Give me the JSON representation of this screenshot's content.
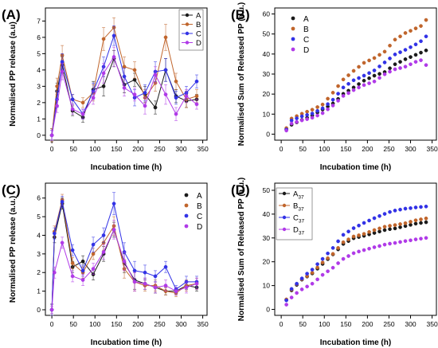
{
  "figure": {
    "colors": {
      "A": "#1a1a1a",
      "B": "#c0652c",
      "C": "#3232e6",
      "D": "#b03ae8"
    }
  },
  "chart_data": [
    {
      "panel_label": "(A)",
      "type": "line",
      "xlabel": "Incubation time (h)",
      "ylabel": "Normalised PP release (a.u)",
      "xlim": [
        -15,
        360
      ],
      "ylim": [
        -0.3,
        7.8
      ],
      "xticks": [
        0,
        50,
        100,
        150,
        200,
        250,
        300,
        350
      ],
      "yticks": [
        0,
        1,
        2,
        3,
        4,
        5,
        6,
        7
      ],
      "legend": "top-right",
      "x": [
        0,
        12,
        24,
        48,
        72,
        96,
        120,
        144,
        168,
        192,
        216,
        240,
        264,
        288,
        312,
        336
      ],
      "series": [
        {
          "name": "A",
          "values": [
            0,
            2.7,
            4.3,
            1.5,
            1.1,
            2.8,
            3.0,
            4.7,
            3.1,
            3.4,
            2.5,
            1.7,
            4.0,
            2.4,
            2.1,
            2.2
          ],
          "errors": [
            0.4,
            0.5,
            0.5,
            0.3,
            0.3,
            0.5,
            0.6,
            0.5,
            0.5,
            0.4,
            0.5,
            0.4,
            0.7,
            0.4,
            0.4,
            0.3
          ]
        },
        {
          "name": "B",
          "values": [
            0,
            3.0,
            4.9,
            2.2,
            2.0,
            2.6,
            5.9,
            6.6,
            4.2,
            4.0,
            2.3,
            3.2,
            6.0,
            3.3,
            2.2,
            2.4
          ],
          "errors": [
            0.4,
            0.5,
            0.6,
            0.3,
            0.3,
            0.5,
            0.7,
            0.6,
            0.6,
            0.5,
            0.5,
            0.5,
            0.8,
            0.5,
            0.5,
            0.4
          ]
        },
        {
          "name": "C",
          "values": [
            0,
            2.2,
            4.5,
            2.2,
            1.3,
            2.7,
            4.2,
            6.1,
            3.6,
            2.3,
            2.6,
            3.9,
            4.0,
            2.3,
            2.6,
            3.3
          ],
          "errors": [
            0.3,
            0.5,
            0.5,
            0.3,
            0.3,
            0.5,
            0.6,
            0.6,
            0.5,
            0.5,
            0.5,
            0.6,
            0.7,
            0.4,
            0.4,
            0.4
          ]
        },
        {
          "name": "D",
          "values": [
            0,
            1.8,
            3.9,
            1.6,
            1.3,
            2.3,
            3.8,
            4.8,
            2.9,
            2.5,
            1.8,
            3.7,
            2.5,
            1.3,
            2.4,
            1.9
          ],
          "errors": [
            0.3,
            0.4,
            0.5,
            0.3,
            0.3,
            0.4,
            0.6,
            0.6,
            0.5,
            0.4,
            0.5,
            0.5,
            0.6,
            0.4,
            0.4,
            0.3
          ]
        }
      ]
    },
    {
      "panel_label": "(B)",
      "type": "scatter",
      "xlabel": "Incubation time (h)",
      "ylabel": "Normalised Sum of Released PP (a.u.)",
      "xlim": [
        -15,
        360
      ],
      "ylim": [
        -3,
        63
      ],
      "xticks": [
        0,
        50,
        100,
        150,
        200,
        250,
        300,
        350
      ],
      "yticks": [
        0,
        10,
        20,
        30,
        40,
        50,
        60
      ],
      "legend": "top-left",
      "x": [
        12,
        24,
        36,
        48,
        60,
        72,
        84,
        96,
        108,
        120,
        132,
        144,
        156,
        168,
        180,
        192,
        204,
        216,
        228,
        240,
        252,
        264,
        276,
        288,
        300,
        312,
        324,
        336
      ],
      "series": [
        {
          "name": "A",
          "values": [
            2.5,
            4.7,
            5.9,
            7.1,
            8.2,
            9.3,
            10.8,
            12.3,
            13.8,
            15.3,
            17.6,
            20.1,
            21.7,
            23.3,
            25.0,
            26.7,
            27.9,
            29.2,
            30.1,
            31.0,
            32.9,
            34.9,
            36.1,
            37.4,
            38.5,
            39.6,
            40.7,
            41.8
          ]
        },
        {
          "name": "B",
          "values": [
            3.0,
            7.8,
            9.0,
            10.2,
            11.2,
            12.2,
            13.5,
            14.8,
            17.7,
            20.7,
            24.0,
            27.3,
            29.4,
            31.6,
            33.6,
            35.6,
            36.8,
            38.0,
            39.6,
            41.2,
            44.2,
            47.2,
            48.8,
            50.5,
            51.6,
            52.8,
            54.0,
            57.0
          ]
        },
        {
          "name": "C",
          "values": [
            2.3,
            6.8,
            7.9,
            8.9,
            9.6,
            10.3,
            11.6,
            12.9,
            15.0,
            17.2,
            20.2,
            23.3,
            25.1,
            26.9,
            28.0,
            29.2,
            30.5,
            31.8,
            33.8,
            35.8,
            37.8,
            39.8,
            40.9,
            42.1,
            43.4,
            44.8,
            46.4,
            48.8
          ]
        },
        {
          "name": "D",
          "values": [
            1.8,
            5.3,
            6.1,
            6.9,
            7.5,
            8.2,
            9.3,
            10.5,
            12.4,
            14.3,
            16.7,
            19.1,
            20.5,
            22.0,
            23.3,
            24.5,
            25.4,
            26.3,
            28.1,
            29.9,
            31.2,
            32.4,
            33.0,
            33.7,
            34.9,
            36.1,
            36.9,
            34.5
          ]
        }
      ]
    },
    {
      "panel_label": "(C)",
      "type": "line",
      "xlabel": "Incubation time (h)",
      "ylabel": "Normalised PP release (a.u.)",
      "xlim": [
        -15,
        360
      ],
      "ylim": [
        -0.3,
        6.8
      ],
      "xticks": [
        0,
        50,
        100,
        150,
        200,
        250,
        300,
        350
      ],
      "yticks": [
        0,
        1,
        2,
        3,
        4,
        5,
        6
      ],
      "legend": "top-right",
      "x": [
        0,
        6,
        24,
        48,
        72,
        96,
        120,
        144,
        168,
        192,
        216,
        240,
        264,
        288,
        312,
        336
      ],
      "series": [
        {
          "name": "A",
          "values": [
            0,
            3.9,
            5.7,
            2.3,
            2.6,
            1.9,
            3.0,
            4.3,
            2.5,
            1.6,
            1.4,
            1.2,
            1.0,
            1.0,
            1.3,
            1.2
          ],
          "errors": [
            0.3,
            0.3,
            0.3,
            0.3,
            0.3,
            0.3,
            0.4,
            0.4,
            0.5,
            0.5,
            0.3,
            0.3,
            0.2,
            0.2,
            0.2,
            0.2
          ]
        },
        {
          "name": "B",
          "values": [
            0,
            4.2,
            5.9,
            2.5,
            2.0,
            3.0,
            3.6,
            4.5,
            2.2,
            1.5,
            1.3,
            1.3,
            1.0,
            0.9,
            1.3,
            1.4
          ],
          "errors": [
            0.3,
            0.3,
            0.3,
            0.3,
            0.3,
            0.3,
            0.4,
            0.5,
            0.5,
            0.5,
            0.3,
            0.3,
            0.2,
            0.2,
            0.3,
            0.3
          ]
        },
        {
          "name": "C",
          "values": [
            0,
            4.1,
            5.8,
            3.2,
            2.1,
            3.5,
            4.0,
            5.7,
            3.1,
            2.1,
            2.0,
            1.8,
            2.3,
            1.1,
            1.5,
            1.5
          ],
          "errors": [
            0.3,
            0.3,
            0.3,
            0.3,
            0.3,
            0.4,
            0.4,
            0.6,
            0.5,
            0.5,
            0.4,
            0.3,
            0.3,
            0.2,
            0.3,
            0.3
          ]
        },
        {
          "name": "D",
          "values": [
            0,
            2.0,
            3.6,
            1.8,
            1.6,
            2.2,
            3.1,
            4.3,
            2.6,
            1.5,
            1.4,
            1.2,
            1.3,
            1.0,
            1.2,
            1.4
          ],
          "errors": [
            0.2,
            0.3,
            0.3,
            0.3,
            0.3,
            0.3,
            0.4,
            0.5,
            0.5,
            0.5,
            0.3,
            0.3,
            0.3,
            0.2,
            0.3,
            0.3
          ]
        }
      ]
    },
    {
      "panel_label": "(D)",
      "type": "scatter",
      "xlabel": "Incubation time (h)",
      "ylabel": "Normalised Sum of Released PP (a.u.)",
      "xlim": [
        -15,
        360
      ],
      "ylim": [
        -2.5,
        53
      ],
      "xticks": [
        0,
        50,
        100,
        150,
        200,
        250,
        300,
        350
      ],
      "yticks": [
        0,
        10,
        20,
        30,
        40,
        50
      ],
      "legend": "top-left",
      "legend_subscript": "37",
      "x": [
        12,
        24,
        36,
        48,
        60,
        72,
        84,
        96,
        108,
        120,
        132,
        144,
        156,
        168,
        180,
        192,
        204,
        216,
        228,
        240,
        252,
        264,
        276,
        288,
        300,
        312,
        324,
        336
      ],
      "series": [
        {
          "name": "A",
          "values": [
            4.0,
            8.0,
            10.3,
            12.5,
            13.8,
            15.1,
            17.1,
            19.1,
            21.1,
            23.1,
            25.2,
            27.5,
            28.7,
            29.9,
            30.4,
            30.9,
            31.5,
            32.1,
            32.7,
            33.3,
            33.7,
            34.0,
            34.5,
            35.0,
            35.5,
            36.0,
            36.3,
            36.6
          ]
        },
        {
          "name": "B",
          "values": [
            4.2,
            8.3,
            10.6,
            12.7,
            14.0,
            15.4,
            17.6,
            19.7,
            21.5,
            23.3,
            25.8,
            28.2,
            29.4,
            30.6,
            31.1,
            31.7,
            32.5,
            33.3,
            34.0,
            34.7,
            35.1,
            35.4,
            35.8,
            36.2,
            36.8,
            37.4,
            37.8,
            38.2
          ]
        },
        {
          "name": "C",
          "values": [
            3.8,
            8.6,
            10.8,
            13.0,
            15.0,
            16.7,
            19.0,
            21.2,
            23.5,
            25.8,
            28.6,
            31.3,
            32.7,
            34.1,
            35.2,
            36.3,
            37.3,
            38.3,
            39.2,
            40.1,
            40.9,
            41.5,
            41.9,
            42.3,
            42.5,
            42.8,
            43.0,
            43.2
          ]
        },
        {
          "name": "D",
          "values": [
            2.0,
            5.0,
            6.9,
            8.4,
            9.6,
            10.8,
            12.6,
            14.5,
            16.0,
            17.5,
            19.4,
            21.2,
            22.4,
            23.6,
            24.3,
            24.9,
            25.5,
            26.1,
            26.6,
            27.2,
            27.6,
            27.9,
            28.3,
            28.7,
            29.0,
            29.4,
            29.7,
            30.0
          ]
        }
      ]
    }
  ]
}
